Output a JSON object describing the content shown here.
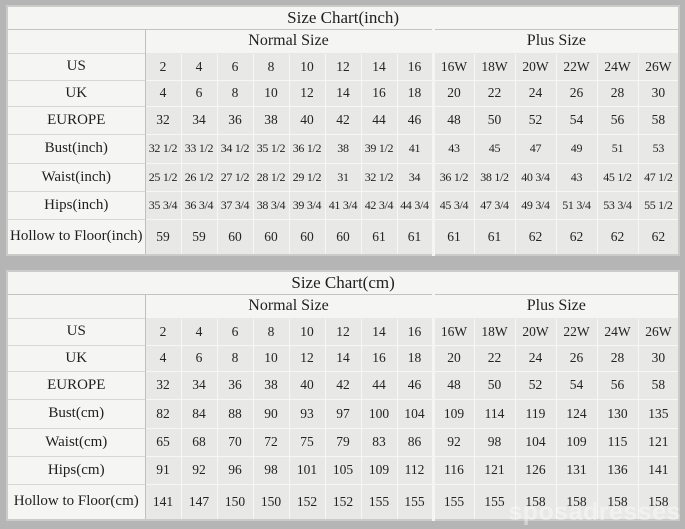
{
  "page": {
    "background_color": "#b5b5b5",
    "panel_color": "#f5f5f4",
    "cell_color": "#e8e8e7"
  },
  "watermark": {
    "text": "sposadresses"
  },
  "chart_data": [
    {
      "type": "table",
      "title": "Size Chart(inch)",
      "group_headers": [
        "Normal Size",
        "Plus Size"
      ],
      "normal_columns": 8,
      "plus_columns": 6,
      "rows": [
        {
          "label": "US",
          "values": [
            "2",
            "4",
            "6",
            "8",
            "10",
            "12",
            "14",
            "16",
            "16W",
            "18W",
            "20W",
            "22W",
            "24W",
            "26W"
          ]
        },
        {
          "label": "UK",
          "values": [
            "4",
            "6",
            "8",
            "10",
            "12",
            "14",
            "16",
            "18",
            "20",
            "22",
            "24",
            "26",
            "28",
            "30"
          ]
        },
        {
          "label": "EUROPE",
          "values": [
            "32",
            "34",
            "36",
            "38",
            "40",
            "42",
            "44",
            "46",
            "48",
            "50",
            "52",
            "54",
            "56",
            "58"
          ]
        },
        {
          "label": "Bust(inch)",
          "values": [
            "32 1/2",
            "33 1/2",
            "34 1/2",
            "35 1/2",
            "36 1/2",
            "38",
            "39 1/2",
            "41",
            "43",
            "45",
            "47",
            "49",
            "51",
            "53"
          ]
        },
        {
          "label": "Waist(inch)",
          "values": [
            "25 1/2",
            "26 1/2",
            "27 1/2",
            "28 1/2",
            "29 1/2",
            "31",
            "32 1/2",
            "34",
            "36 1/2",
            "38 1/2",
            "40 3/4",
            "43",
            "45 1/2",
            "47 1/2"
          ]
        },
        {
          "label": "Hips(inch)",
          "values": [
            "35 3/4",
            "36 3/4",
            "37 3/4",
            "38 3/4",
            "39 3/4",
            "41 3/4",
            "42 3/4",
            "44 3/4",
            "45 3/4",
            "47 3/4",
            "49 3/4",
            "51 3/4",
            "53 3/4",
            "55 1/2"
          ]
        },
        {
          "label": "Hollow to Floor(inch)",
          "values": [
            "59",
            "59",
            "60",
            "60",
            "60",
            "60",
            "61",
            "61",
            "61",
            "61",
            "62",
            "62",
            "62",
            "62"
          ]
        }
      ]
    },
    {
      "type": "table",
      "title": "Size Chart(cm)",
      "group_headers": [
        "Normal Size",
        "Plus Size"
      ],
      "normal_columns": 8,
      "plus_columns": 6,
      "rows": [
        {
          "label": "US",
          "values": [
            "2",
            "4",
            "6",
            "8",
            "10",
            "12",
            "14",
            "16",
            "16W",
            "18W",
            "20W",
            "22W",
            "24W",
            "26W"
          ]
        },
        {
          "label": "UK",
          "values": [
            "4",
            "6",
            "8",
            "10",
            "12",
            "14",
            "16",
            "18",
            "20",
            "22",
            "24",
            "26",
            "28",
            "30"
          ]
        },
        {
          "label": "EUROPE",
          "values": [
            "32",
            "34",
            "36",
            "38",
            "40",
            "42",
            "44",
            "46",
            "48",
            "50",
            "52",
            "54",
            "56",
            "58"
          ]
        },
        {
          "label": "Bust(cm)",
          "values": [
            "82",
            "84",
            "88",
            "90",
            "93",
            "97",
            "100",
            "104",
            "109",
            "114",
            "119",
            "124",
            "130",
            "135"
          ]
        },
        {
          "label": "Waist(cm)",
          "values": [
            "65",
            "68",
            "70",
            "72",
            "75",
            "79",
            "83",
            "86",
            "92",
            "98",
            "104",
            "109",
            "115",
            "121"
          ]
        },
        {
          "label": "Hips(cm)",
          "values": [
            "91",
            "92",
            "96",
            "98",
            "101",
            "105",
            "109",
            "112",
            "116",
            "121",
            "126",
            "131",
            "136",
            "141"
          ]
        },
        {
          "label": "Hollow to Floor(cm)",
          "values": [
            "141",
            "147",
            "150",
            "150",
            "152",
            "152",
            "155",
            "155",
            "155",
            "155",
            "158",
            "158",
            "158",
            "158"
          ]
        }
      ]
    }
  ]
}
